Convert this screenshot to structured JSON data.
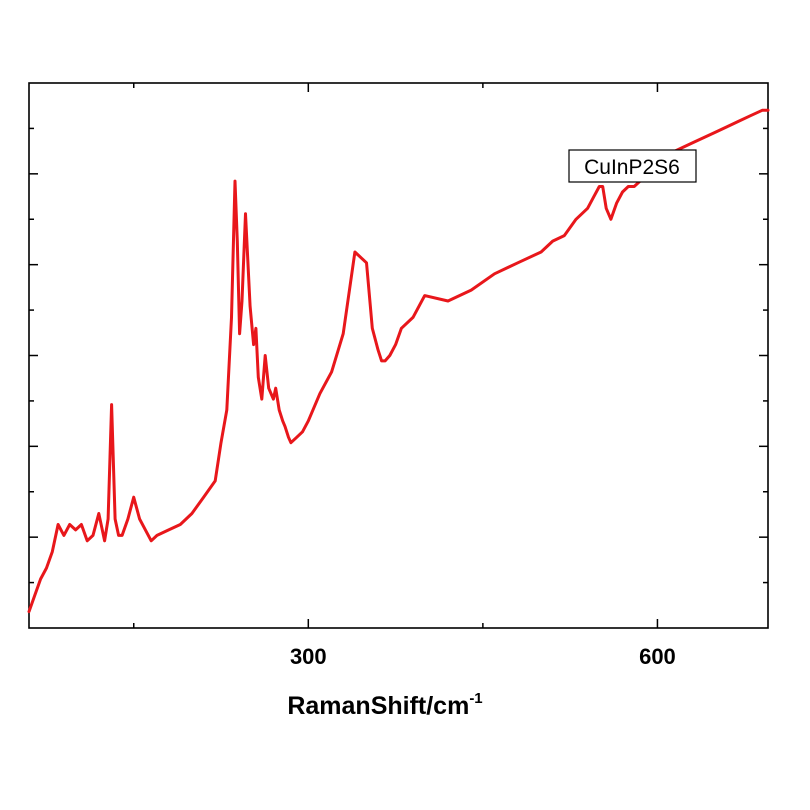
{
  "chart_data": {
    "type": "line",
    "title": "",
    "xlabel": "RamanShift/cm",
    "xlabel_superscript": "-1",
    "ylabel": "",
    "xlim": [
      60,
      695
    ],
    "ylim": [
      0,
      100
    ],
    "x_ticks": [
      300,
      600
    ],
    "x_tick_labels": [
      "300",
      "600"
    ],
    "x_minor_ticks": [
      150,
      450
    ],
    "y_ticks_count": 12,
    "y_tick_labels": [],
    "grid": false,
    "legend": {
      "placement": "top-right",
      "entries": [
        "CuInP2S6"
      ]
    },
    "colors": {
      "series": "#e8171b",
      "axis": "#000000"
    },
    "series": [
      {
        "name": "CuInP2S6",
        "x": [
          60,
          65,
          70,
          75,
          80,
          85,
          90,
          95,
          100,
          105,
          110,
          115,
          120,
          125,
          128,
          131,
          134,
          137,
          140,
          145,
          150,
          155,
          160,
          165,
          170,
          180,
          190,
          200,
          210,
          220,
          225,
          230,
          234,
          237,
          239,
          241,
          243,
          246,
          250,
          253,
          255,
          257,
          260,
          263,
          266,
          270,
          272,
          275,
          278,
          280,
          283,
          285,
          290,
          295,
          300,
          310,
          320,
          330,
          340,
          350,
          355,
          360,
          363,
          366,
          370,
          375,
          380,
          390,
          400,
          420,
          440,
          460,
          480,
          500,
          510,
          520,
          530,
          540,
          545,
          550,
          553,
          556,
          560,
          565,
          570,
          575,
          580,
          585,
          590,
          595,
          600,
          610,
          620,
          630,
          640,
          650,
          660,
          670,
          680,
          690,
          695
        ],
        "y": [
          3,
          6,
          9,
          11,
          14,
          19,
          17,
          19,
          18,
          19,
          16,
          17,
          21,
          16,
          20,
          41,
          20,
          17,
          17,
          20,
          24,
          20,
          18,
          16,
          17,
          18,
          19,
          21,
          24,
          27,
          34,
          40,
          57,
          82,
          71,
          54,
          60,
          76,
          59,
          52,
          55,
          46,
          42,
          50,
          44,
          42,
          44,
          40,
          38,
          37,
          35,
          34,
          35,
          36,
          38,
          43,
          47,
          54,
          69,
          67,
          55,
          51,
          49,
          49,
          50,
          52,
          55,
          57,
          61,
          60,
          62,
          65,
          67,
          69,
          71,
          72,
          75,
          77,
          79,
          81,
          81,
          77,
          75,
          78,
          80,
          81,
          81,
          82,
          83,
          84,
          85,
          87,
          88,
          89,
          90,
          91,
          92,
          93,
          94,
          95,
          95
        ]
      }
    ]
  }
}
